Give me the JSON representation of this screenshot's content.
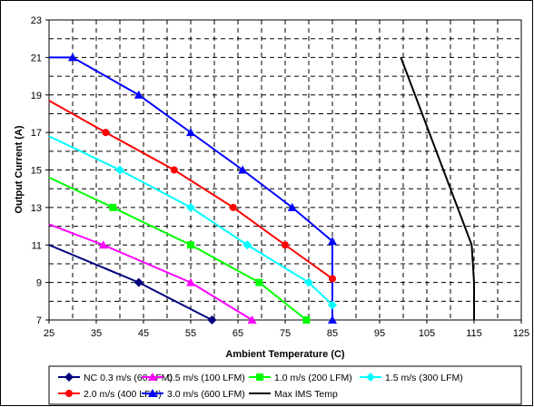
{
  "chart_data": {
    "type": "line",
    "title": "",
    "xlabel": "Ambient Temperature (C)",
    "ylabel": "Output Current (A)",
    "xlim": [
      25,
      125
    ],
    "ylim": [
      7,
      23
    ],
    "x_ticks": [
      25,
      35,
      45,
      55,
      65,
      75,
      85,
      95,
      105,
      115,
      125
    ],
    "y_ticks": [
      7,
      9,
      11,
      13,
      15,
      17,
      19,
      21,
      23
    ],
    "grid": "dashed",
    "legend_position": "bottom",
    "series": [
      {
        "name": "NC 0.3 m/s (60 LFM)",
        "color": "#000080",
        "marker": "diamond",
        "x": [
          25,
          44,
          59.5
        ],
        "y": [
          11,
          9,
          7
        ],
        "marker_index": [
          1,
          2
        ]
      },
      {
        "name": "0.5 m/s (100 LFM)",
        "color": "#ff00ff",
        "marker": "triangle",
        "x": [
          25,
          36.5,
          55,
          68
        ],
        "y": [
          12.1,
          11,
          9,
          7
        ],
        "marker_index": [
          1,
          2,
          3
        ]
      },
      {
        "name": "1.0 m/s (200 LFM)",
        "color": "#00ff00",
        "marker": "square",
        "x": [
          25,
          38.5,
          55,
          69.5,
          79.5,
          80
        ],
        "y": [
          14.6,
          13,
          11,
          9,
          7,
          7
        ],
        "marker_index": [
          1,
          2,
          3,
          4
        ]
      },
      {
        "name": "1.5 m/s (300 LFM)",
        "color": "#00ffff",
        "marker": "diamond",
        "x": [
          25,
          40,
          55,
          67,
          80,
          85
        ],
        "y": [
          16.8,
          15,
          13,
          11,
          9,
          7.8
        ],
        "marker_index": [
          1,
          2,
          3,
          4,
          5
        ]
      },
      {
        "name": "2.0 m/s (400 LFM)",
        "color": "#ff0000",
        "marker": "circle",
        "x": [
          25,
          37,
          51.5,
          64,
          75,
          85
        ],
        "y": [
          18.7,
          17,
          15,
          13,
          11,
          9.2
        ],
        "marker_index": [
          1,
          2,
          3,
          4,
          5
        ]
      },
      {
        "name": "3.0 m/s (600 LFM)",
        "color": "#0000ff",
        "marker": "triangle",
        "x": [
          25,
          30,
          44,
          55,
          66,
          76.5,
          85,
          85
        ],
        "y": [
          21,
          21,
          19,
          17,
          15,
          13,
          11.2,
          7
        ],
        "marker_index": [
          1,
          2,
          3,
          4,
          5,
          6,
          7
        ]
      },
      {
        "name": "Max IMS Temp",
        "color": "#000000",
        "marker": "none",
        "x": [
          99.5,
          114.5,
          115,
          115
        ],
        "y": [
          21,
          11,
          9,
          7
        ],
        "marker_index": []
      }
    ]
  }
}
